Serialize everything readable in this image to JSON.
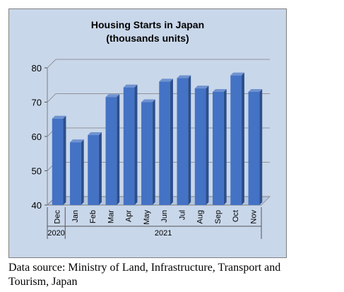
{
  "chart_data": {
    "type": "bar",
    "title": "Housing Starts in Japan",
    "subtitle": "(thousands units)",
    "xlabel": "",
    "ylabel": "",
    "categories": [
      "Dec",
      "Jan",
      "Feb",
      "Mar",
      "Apr",
      "May",
      "Jun",
      "Jul",
      "Aug",
      "Sep",
      "Oct",
      "Nov"
    ],
    "year_groups": [
      {
        "label": "2020",
        "categories": [
          "Dec"
        ]
      },
      {
        "label": "2021",
        "categories": [
          "Jan",
          "Feb",
          "Mar",
          "Apr",
          "May",
          "Jun",
          "Jul",
          "Aug",
          "Sep",
          "Oct",
          "Nov"
        ]
      }
    ],
    "values": [
      65.2,
      58.3,
      60.4,
      71.5,
      74.3,
      70.0,
      76.0,
      77.0,
      74.0,
      73.0,
      77.8,
      73.0
    ],
    "yticks": [
      40,
      50,
      60,
      70,
      80
    ],
    "ylim": [
      40,
      80
    ],
    "grid": true,
    "legend": "none",
    "bar_color": "#4472c4",
    "bar_side_color": "#2c4f8c",
    "bar_top_color": "#6f93d1",
    "plot_background": "#c9d7ea"
  },
  "source_note": {
    "line1": "Data source: Ministry of Land, Infrastructure, Transport and",
    "line2": "Tourism, Japan"
  }
}
